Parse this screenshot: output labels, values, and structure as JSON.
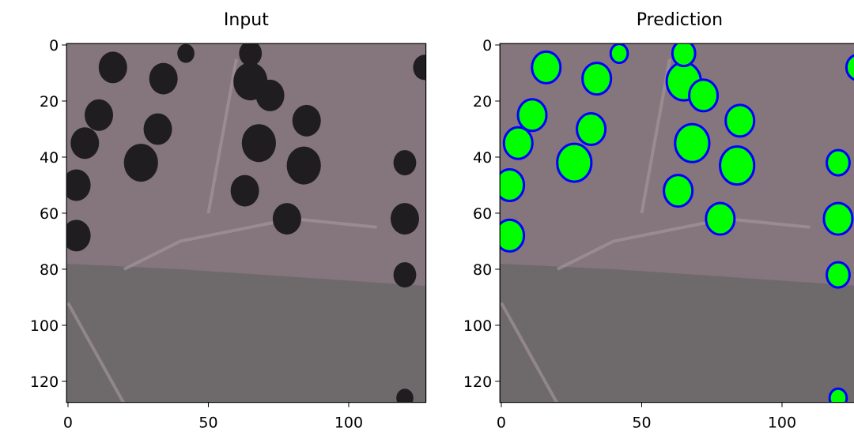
{
  "chart_data": [
    {
      "type": "image",
      "title": "Input",
      "xlim": [
        -0.5,
        127.5
      ],
      "ylim": [
        127.5,
        -0.5
      ],
      "xticks": [
        0,
        50,
        100
      ],
      "yticks": [
        0,
        20,
        40,
        60,
        80,
        100,
        120
      ]
    },
    {
      "type": "image",
      "title": "Prediction",
      "xlim": [
        -0.5,
        127.5
      ],
      "ylim": [
        127.5,
        -0.5
      ],
      "xticks": [
        0,
        50,
        100
      ],
      "yticks": [
        0,
        20,
        40,
        60,
        80,
        100,
        120
      ]
    }
  ]
}
